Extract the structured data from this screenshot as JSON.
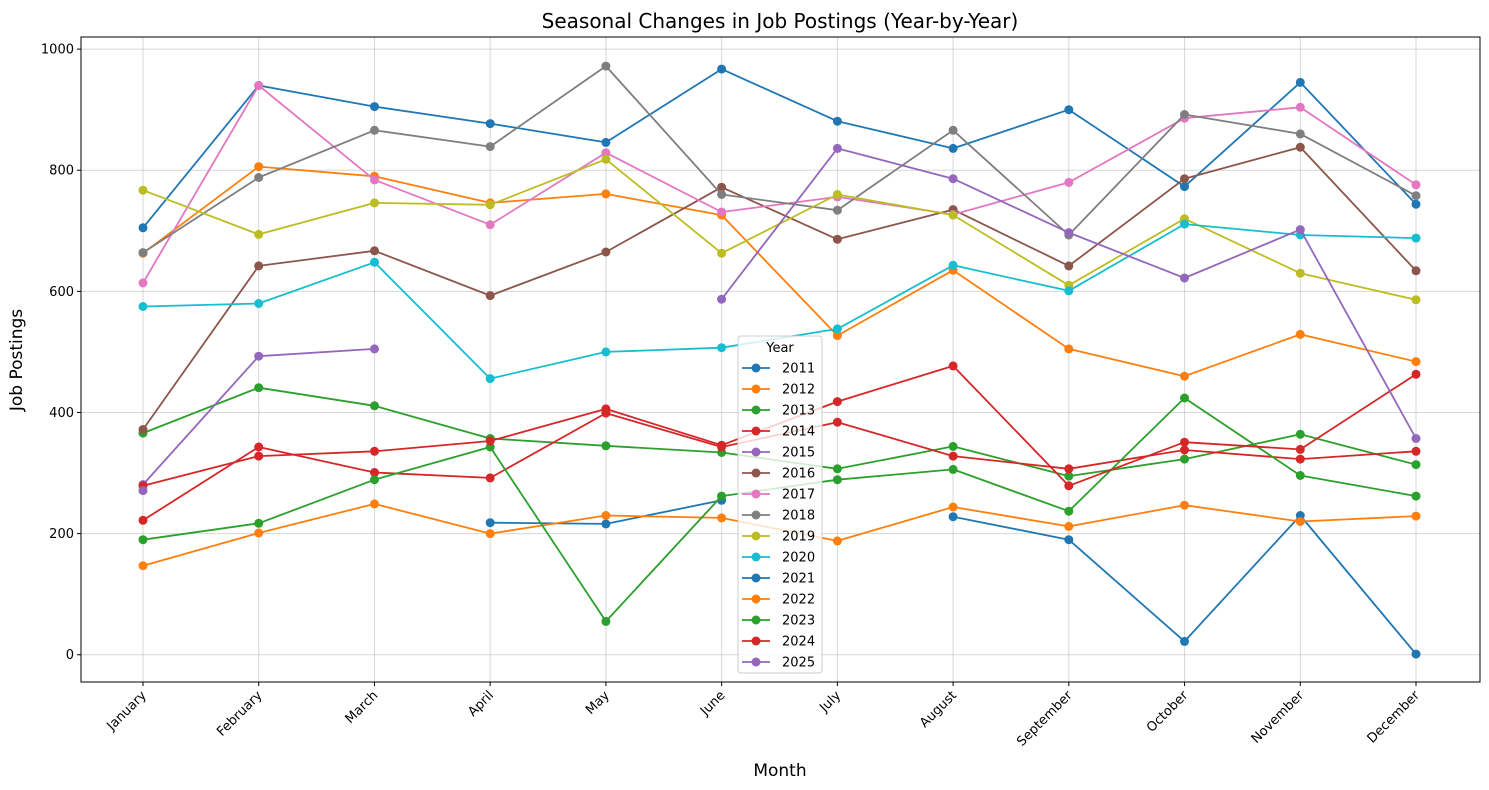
{
  "chart_data": {
    "type": "line",
    "title": "Seasonal Changes in Job Postings (Year-by-Year)",
    "xlabel": "Month",
    "ylabel": "Job Postings",
    "categories": [
      "January",
      "February",
      "March",
      "April",
      "May",
      "June",
      "July",
      "August",
      "September",
      "October",
      "November",
      "December"
    ],
    "ylim": [
      -45,
      1020
    ],
    "yticks": [
      0,
      200,
      400,
      600,
      800,
      1000
    ],
    "grid": true,
    "legend": {
      "title": "Year",
      "placement": "bottom-center"
    },
    "series": [
      {
        "name": "2011",
        "color": "#1f77b4",
        "values": [
          705,
          940,
          905,
          877,
          846,
          967,
          881,
          836,
          900,
          773,
          945,
          744
        ]
      },
      {
        "name": "2012",
        "color": "#ff7f0e",
        "values": [
          663,
          806,
          790,
          746,
          761,
          726,
          527,
          635,
          505,
          460,
          529,
          484
        ]
      },
      {
        "name": "2013",
        "color": "#2ca02c",
        "values": [
          366,
          441,
          411,
          357,
          345,
          334,
          307,
          344,
          295,
          323,
          364,
          314
        ]
      },
      {
        "name": "2014",
        "color": "#d62728",
        "values": [
          222,
          343,
          301,
          292,
          399,
          343,
          384,
          328,
          307,
          338,
          323,
          336
        ]
      },
      {
        "name": "2015",
        "color": "#9467bd",
        "values": [
          281,
          493,
          505,
          null,
          null,
          null,
          null,
          null,
          null,
          null,
          null,
          null
        ]
      },
      {
        "name": "2016",
        "color": "#8c564b",
        "values": [
          372,
          642,
          667,
          593,
          665,
          772,
          686,
          735,
          642,
          786,
          838,
          634
        ]
      },
      {
        "name": "2017",
        "color": "#e377c2",
        "values": [
          614,
          940,
          784,
          710,
          829,
          731,
          756,
          727,
          780,
          886,
          904,
          776
        ]
      },
      {
        "name": "2018",
        "color": "#7f7f7f",
        "values": [
          664,
          788,
          866,
          839,
          972,
          760,
          734,
          866,
          693,
          892,
          860,
          758
        ]
      },
      {
        "name": "2019",
        "color": "#bcbd22",
        "values": [
          767,
          694,
          746,
          743,
          818,
          663,
          760,
          726,
          610,
          720,
          630,
          586
        ]
      },
      {
        "name": "2020",
        "color": "#17becf",
        "values": [
          575,
          580,
          648,
          456,
          500,
          507,
          538,
          643,
          601,
          711,
          693,
          688
        ]
      },
      {
        "name": "2021",
        "color": "#1f77b4",
        "values": [
          null,
          null,
          null,
          218,
          216,
          255,
          null,
          228,
          190,
          22,
          230,
          1
        ]
      },
      {
        "name": "2022",
        "color": "#ff7f0e",
        "values": [
          147,
          201,
          249,
          200,
          230,
          226,
          188,
          244,
          212,
          247,
          220,
          229
        ]
      },
      {
        "name": "2023",
        "color": "#2ca02c",
        "values": [
          190,
          217,
          289,
          343,
          55,
          262,
          289,
          306,
          237,
          424,
          296,
          262
        ]
      },
      {
        "name": "2024",
        "color": "#d62728",
        "values": [
          279,
          328,
          336,
          353,
          406,
          346,
          418,
          477,
          279,
          351,
          339,
          463
        ]
      },
      {
        "name": "2025",
        "color": "#9467bd",
        "values": [
          271,
          null,
          null,
          null,
          null,
          587,
          836,
          786,
          697,
          622,
          702,
          357
        ]
      }
    ]
  }
}
